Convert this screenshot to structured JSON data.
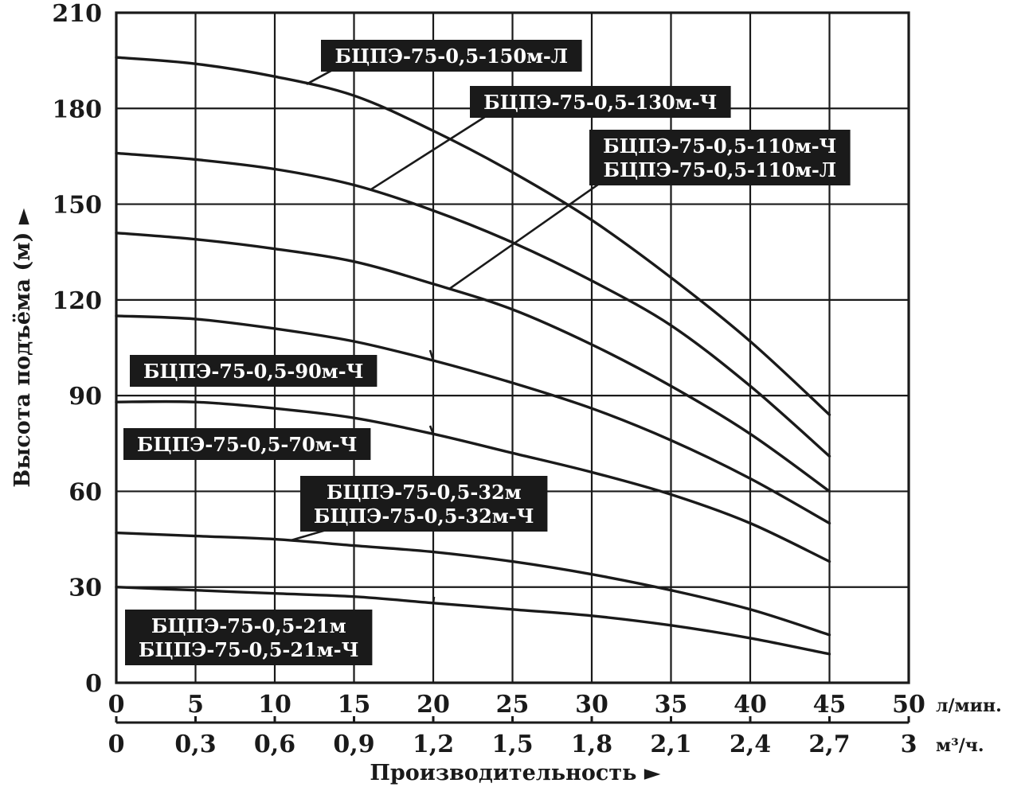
{
  "chart_data": {
    "type": "line",
    "title": "",
    "ylabel": "Высота подъёма (м) ►",
    "xlabel": "Производительность ►",
    "x_unit": "л/мин.",
    "x2_unit": "м³/ч.",
    "xlim": [
      0,
      50
    ],
    "ylim": [
      0,
      210
    ],
    "grid": true,
    "x_ticks": [
      "0",
      "5",
      "10",
      "15",
      "20",
      "25",
      "30",
      "35",
      "40",
      "45",
      "50"
    ],
    "x2_ticks": [
      "0",
      "0,3",
      "0,6",
      "0,9",
      "1,2",
      "1,5",
      "1,8",
      "2,1",
      "2,4",
      "2,7",
      "3"
    ],
    "y_ticks": [
      "0",
      "30",
      "60",
      "90",
      "120",
      "150",
      "180",
      "210"
    ],
    "x": [
      0,
      5,
      10,
      15,
      20,
      25,
      30,
      35,
      40,
      45
    ],
    "series": [
      {
        "values": [
          196,
          194,
          190,
          184,
          173,
          160,
          145,
          127,
          107,
          84
        ]
      },
      {
        "values": [
          166,
          164,
          161,
          156,
          148,
          138,
          126,
          112,
          93,
          71
        ]
      },
      {
        "values": [
          141,
          139,
          136,
          132,
          125,
          117,
          106,
          93,
          78,
          60
        ]
      },
      {
        "values": [
          115,
          114,
          111,
          107,
          101,
          94,
          86,
          76,
          64,
          50
        ]
      },
      {
        "values": [
          88,
          88,
          86,
          83,
          78,
          72,
          66,
          59,
          50,
          38
        ]
      },
      {
        "values": [
          47,
          46,
          45,
          43,
          41,
          38,
          34,
          29,
          23,
          15
        ]
      },
      {
        "values": [
          30,
          29,
          28,
          27,
          25,
          23,
          21,
          18,
          14,
          9
        ]
      }
    ],
    "labels": [
      {
        "lines": [
          "БЦПЭ-75-0,5-150м-Л"
        ],
        "series": 0
      },
      {
        "lines": [
          "БЦПЭ-75-0,5-130м-Ч"
        ],
        "series": 1
      },
      {
        "lines": [
          "БЦПЭ-75-0,5-110м-Ч",
          "БЦПЭ-75-0,5-110м-Л"
        ],
        "series": 2
      },
      {
        "lines": [
          "БЦПЭ-75-0,5-90м-Ч"
        ],
        "series": 3
      },
      {
        "lines": [
          "БЦПЭ-75-0,5-70м-Ч"
        ],
        "series": 4
      },
      {
        "lines": [
          "БЦПЭ-75-0,5-32м",
          "БЦПЭ-75-0,5-32м-Ч"
        ],
        "series": 5
      },
      {
        "lines": [
          "БЦПЭ-75-0,5-21м",
          "БЦПЭ-75-0,5-21м-Ч"
        ],
        "series": 6
      }
    ],
    "colors": {
      "line": "#1a1a1a",
      "label_bg": "#1a1a1a",
      "label_text": "#ffffff"
    }
  }
}
